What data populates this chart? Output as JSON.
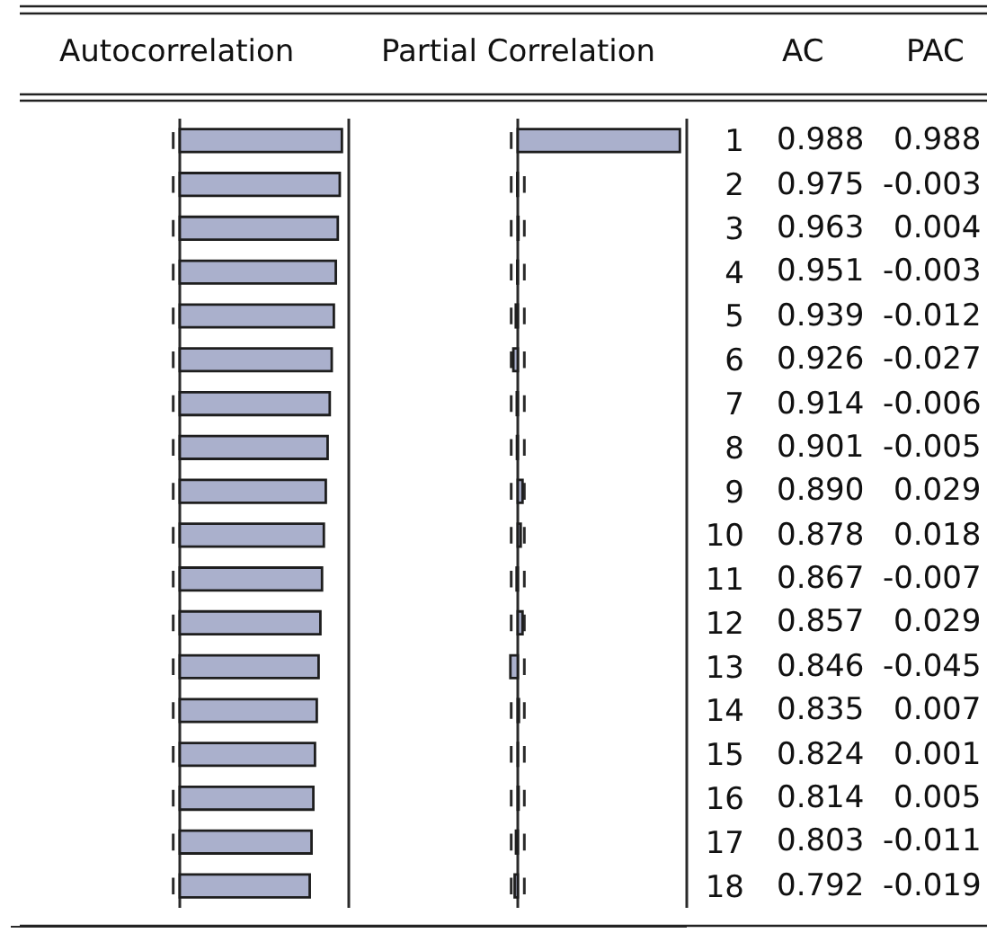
{
  "chart_data": [
    {
      "type": "bar",
      "orientation": "horizontal",
      "title": "Autocorrelation",
      "categories": [
        "1",
        "2",
        "3",
        "4",
        "5",
        "6",
        "7",
        "8",
        "9",
        "10",
        "11",
        "12",
        "13",
        "14",
        "15",
        "16",
        "17",
        "18"
      ],
      "xlim": [
        -1.03,
        1.03
      ],
      "tick_labels": false,
      "series": [
        {
          "name": "AC",
          "color": "#aab0cc",
          "values": [
            0.988,
            0.975,
            0.963,
            0.951,
            0.939,
            0.926,
            0.914,
            0.901,
            0.89,
            0.878,
            0.867,
            0.857,
            0.846,
            0.835,
            0.824,
            0.814,
            0.803,
            0.792
          ],
          "value_labels": [
            "0.988",
            "0.975",
            "0.963",
            "0.951",
            "0.939",
            "0.926",
            "0.914",
            "0.901",
            "0.890",
            "0.878",
            "0.867",
            "0.857",
            "0.846",
            "0.835",
            "0.824",
            "0.814",
            "0.803",
            "0.792"
          ]
        }
      ],
      "ref_lines": [
        {
          "axis": "x",
          "value": 0,
          "line_style": "solid"
        },
        {
          "axis": "x",
          "value": -0.04,
          "line_style": "dashed"
        }
      ]
    },
    {
      "type": "bar",
      "orientation": "horizontal",
      "title": "Partial Correlation",
      "categories": [
        "1",
        "2",
        "3",
        "4",
        "5",
        "6",
        "7",
        "8",
        "9",
        "10",
        "11",
        "12",
        "13",
        "14",
        "15",
        "16",
        "17",
        "18"
      ],
      "xlim": [
        -1.03,
        1.03
      ],
      "tick_labels": "y",
      "series": [
        {
          "name": "PAC",
          "color": "#aab0cc",
          "values": [
            0.988,
            -0.003,
            0.004,
            -0.003,
            -0.012,
            -0.027,
            -0.006,
            -0.005,
            0.029,
            0.018,
            -0.007,
            0.029,
            -0.045,
            0.007,
            0.001,
            0.005,
            -0.011,
            -0.019
          ],
          "value_labels": [
            "0.988",
            "-0.003",
            "0.004",
            "-0.003",
            "-0.012",
            "-0.027",
            "-0.006",
            "-0.005",
            "0.029",
            "0.018",
            "-0.007",
            "0.029",
            "-0.045",
            "0.007",
            "0.001",
            "0.005",
            "-0.011",
            "-0.019"
          ]
        }
      ],
      "ref_lines": [
        {
          "axis": "x",
          "value": 0,
          "line_style": "solid"
        },
        {
          "axis": "x",
          "value": -0.04,
          "line_style": "dashed"
        },
        {
          "axis": "x",
          "value": 0.04,
          "line_style": "dashed"
        }
      ]
    }
  ]
}
